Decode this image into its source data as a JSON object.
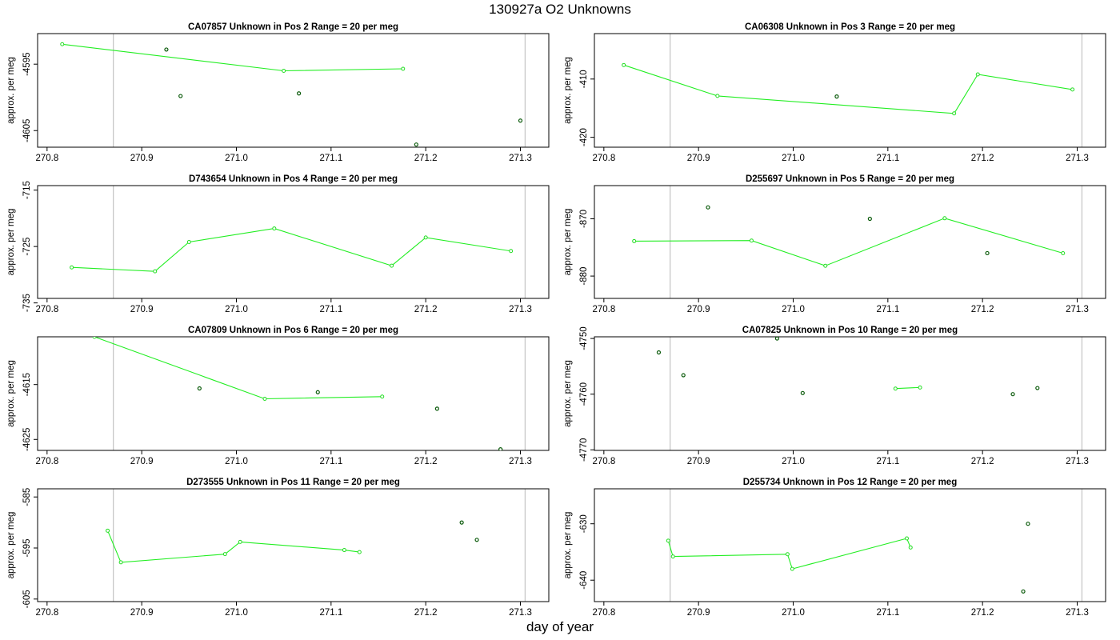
{
  "title": "130927a  O2 Unknowns",
  "xlabel": "day of year",
  "chart_data": [
    {
      "type": "line",
      "title": "CA07857    Unknown in Pos 2         Range = 20 per meg",
      "xlabel": "day of year",
      "ylabel": "approx. per meg",
      "xlim": [
        270.79,
        271.33
      ],
      "ylim": [
        4590.4,
        4607.5
      ],
      "yaxis_negative_labels": true,
      "xticks": [
        "270.8",
        "270.9",
        "271.0",
        "271.1",
        "271.2",
        "271.3"
      ],
      "yticks": [
        "-4595",
        "-4605"
      ],
      "ref_lines": [
        270.87,
        271.305
      ],
      "line": {
        "x": [
          270.816,
          271.05,
          271.176
        ],
        "y": [
          4592.0,
          4596.0,
          4595.7
        ]
      },
      "points": {
        "x": [
          270.926,
          270.941,
          271.066,
          271.19,
          271.3
        ],
        "y": [
          4592.8,
          4599.8,
          4599.4,
          4607.1,
          4603.5
        ]
      }
    },
    {
      "type": "line",
      "title": "CA06308    Unknown in Pos 3         Range = 20 per meg",
      "xlabel": "day of year",
      "ylabel": "approx. per meg",
      "xlim": [
        270.79,
        271.33
      ],
      "ylim": [
        402.2,
        421.7
      ],
      "yaxis_negative_labels": true,
      "xticks": [
        "270.8",
        "270.9",
        "271.0",
        "271.1",
        "271.2",
        "271.3"
      ],
      "yticks": [
        "-410",
        "-420"
      ],
      "ref_lines": [
        270.87,
        271.305
      ],
      "line": {
        "x": [
          270.821,
          270.92,
          271.17,
          271.195,
          271.295
        ],
        "y": [
          407.6,
          412.9,
          415.9,
          409.2,
          411.8
        ]
      },
      "points": {
        "x": [
          271.046
        ],
        "y": [
          413.0
        ]
      }
    },
    {
      "type": "line",
      "title": "D743654    Unknown in Pos 4         Range = 20 per meg",
      "xlabel": "day of year",
      "ylabel": "approx. per meg",
      "xlim": [
        270.79,
        271.33
      ],
      "ylim": [
        714.2,
        734.2
      ],
      "yaxis_negative_labels": true,
      "xticks": [
        "270.8",
        "270.9",
        "271.0",
        "271.1",
        "271.2",
        "271.3"
      ],
      "yticks": [
        "-715",
        "-725",
        "-735"
      ],
      "ref_lines": [
        270.87,
        271.305
      ],
      "line": {
        "x": [
          270.826,
          270.914,
          270.95,
          271.04,
          271.164,
          271.2,
          271.29
        ],
        "y": [
          728.7,
          729.4,
          724.2,
          721.8,
          728.4,
          723.4,
          725.8
        ]
      },
      "points": {
        "x": [],
        "y": []
      }
    },
    {
      "type": "line",
      "title": "D255697    Unknown in Pos 5         Range = 20 per meg",
      "xlabel": "day of year",
      "ylabel": "approx. per meg",
      "xlim": [
        270.79,
        271.33
      ],
      "ylim": [
        864.2,
        883.9
      ],
      "yaxis_negative_labels": true,
      "xticks": [
        "270.8",
        "270.9",
        "271.0",
        "271.1",
        "271.2",
        "271.3"
      ],
      "yticks": [
        "-870",
        "-880"
      ],
      "ref_lines": [
        270.87,
        271.305
      ],
      "line": {
        "x": [
          270.832,
          270.956,
          271.034,
          271.16,
          271.285
        ],
        "y": [
          873.9,
          873.8,
          878.2,
          869.9,
          876.0
        ]
      },
      "points": {
        "x": [
          270.91,
          271.081,
          271.205
        ],
        "y": [
          868.0,
          870.0,
          876.0
        ]
      }
    },
    {
      "type": "line",
      "title": "CA07809    Unknown in Pos 6         Range = 20 per meg",
      "xlabel": "day of year",
      "ylabel": "approx. per meg",
      "xlim": [
        270.79,
        271.33
      ],
      "ylim": [
        4606.3,
        4627.0
      ],
      "yaxis_negative_labels": true,
      "xticks": [
        "270.8",
        "270.9",
        "271.0",
        "271.1",
        "271.2",
        "271.3"
      ],
      "yticks": [
        "-4615",
        "-4625"
      ],
      "ref_lines": [
        270.87,
        271.305
      ],
      "line": {
        "x": [
          270.85,
          271.03,
          271.154
        ],
        "y": [
          4606.3,
          4617.6,
          4617.2
        ]
      },
      "points": {
        "x": [
          270.961,
          271.086,
          271.212,
          271.279
        ],
        "y": [
          4615.7,
          4616.4,
          4619.4,
          4626.8
        ]
      }
    },
    {
      "type": "line",
      "title": "CA07825    Unknown in Pos 10         Range = 20 per meg",
      "xlabel": "day of year",
      "ylabel": "approx. per meg",
      "xlim": [
        270.79,
        271.33
      ],
      "ylim": [
        4749.7,
        4770.1
      ],
      "yaxis_negative_labels": true,
      "xticks": [
        "270.8",
        "270.9",
        "271.0",
        "271.1",
        "271.2",
        "271.3"
      ],
      "yticks": [
        "-4750",
        "-4760",
        "-4770"
      ],
      "ref_lines": [
        270.87,
        271.305
      ],
      "line": {
        "x": [
          271.108,
          271.134
        ],
        "y": [
          4759.0,
          4758.8
        ]
      },
      "points": {
        "x": [
          270.858,
          270.884,
          270.983,
          271.01,
          271.232,
          271.258
        ],
        "y": [
          4752.5,
          4756.6,
          4750.0,
          4759.8,
          4760.0,
          4758.9
        ]
      }
    },
    {
      "type": "line",
      "title": "D273555    Unknown in Pos 11         Range = 20 per meg",
      "xlabel": "day of year",
      "ylabel": "approx. per meg",
      "xlim": [
        270.79,
        271.33
      ],
      "ylim": [
        583.4,
        605.5
      ],
      "yaxis_negative_labels": true,
      "xticks": [
        "270.8",
        "270.9",
        "271.0",
        "271.1",
        "271.2",
        "271.3"
      ],
      "yticks": [
        "-585",
        "-595",
        "-605"
      ],
      "ref_lines": [
        270.87,
        271.305
      ],
      "line": {
        "x": [
          270.864,
          270.878,
          270.988,
          271.004,
          271.114,
          271.13
        ],
        "y": [
          591.6,
          597.8,
          596.2,
          593.8,
          595.4,
          595.8
        ]
      },
      "points": {
        "x": [
          271.238,
          271.254
        ],
        "y": [
          590.0,
          593.4
        ]
      }
    },
    {
      "type": "line",
      "title": "D255734    Unknown in Pos 12         Range = 20 per meg",
      "xlabel": "day of year",
      "ylabel": "approx. per meg",
      "xlim": [
        270.79,
        271.33
      ],
      "ylim": [
        623.8,
        643.8
      ],
      "yaxis_negative_labels": true,
      "xticks": [
        "270.8",
        "270.9",
        "271.0",
        "271.1",
        "271.2",
        "271.3"
      ],
      "yticks": [
        "-630",
        "-640"
      ],
      "ref_lines": [
        270.87,
        271.305
      ],
      "line": {
        "x": [
          270.868,
          270.873,
          270.994,
          270.999,
          271.12,
          271.124
        ],
        "y": [
          633.0,
          635.8,
          635.4,
          638.0,
          632.6,
          634.2
        ]
      },
      "points": {
        "x": [
          271.243,
          271.248
        ],
        "y": [
          642.0,
          630.0
        ]
      }
    }
  ]
}
